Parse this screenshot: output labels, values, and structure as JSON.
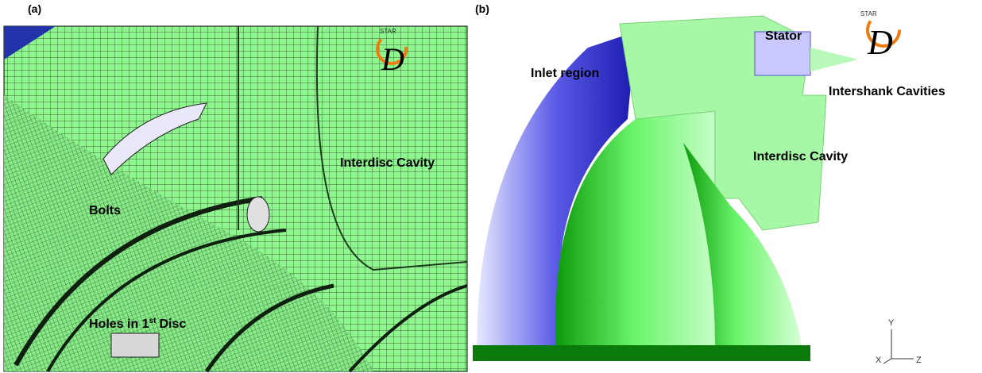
{
  "panel_a": {
    "tag": "(a)",
    "labels": {
      "bolts": "Bolts",
      "holes": {
        "text": "Holes in 1",
        "superscript": "st",
        "rest": "Disc"
      },
      "cavity": "Interdisc Cavity"
    },
    "logo": {
      "small": "STAR",
      "big": "D"
    }
  },
  "panel_b": {
    "tag": "(b)",
    "labels": {
      "inlet": "Inlet region",
      "stator": "Stator",
      "intershank": "Intershank Cavities",
      "cavity": "Interdisc Cavity"
    },
    "logo": {
      "small": "STAR",
      "big": "D"
    },
    "axes": {
      "y": "Y",
      "x": "X",
      "z": "Z"
    }
  }
}
